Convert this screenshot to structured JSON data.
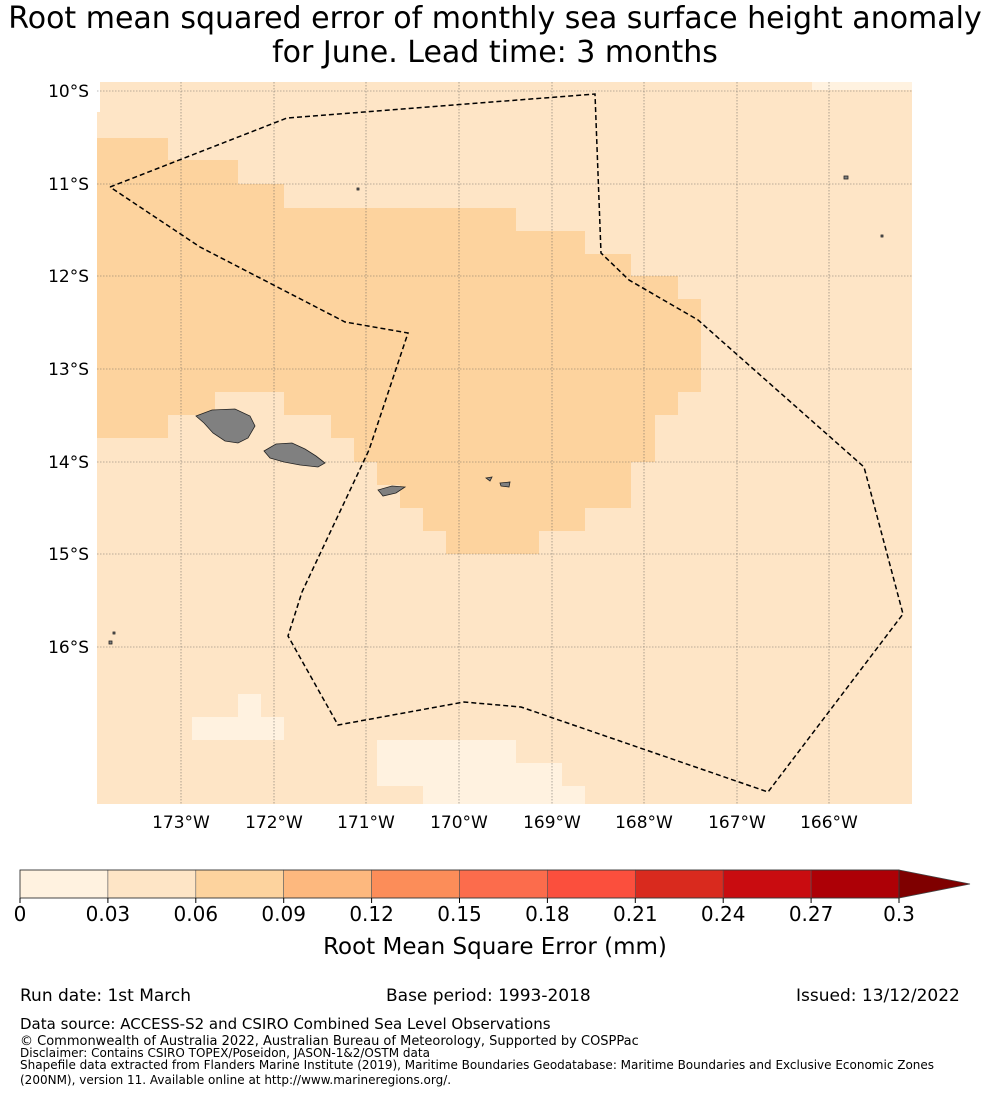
{
  "title_line1": "Root mean squared error of monthly sea surface height anomaly",
  "title_line2": "for June. Lead time: 3 months",
  "map": {
    "lat_labels": [
      "10°S",
      "11°S",
      "12°S",
      "13°S",
      "14°S",
      "15°S",
      "16°S"
    ],
    "lon_labels": [
      "173°W",
      "172°W",
      "171°W",
      "170°W",
      "169°W",
      "168°W",
      "167°W",
      "166°W"
    ],
    "boundary_line": "dashed",
    "land_color": "#808080"
  },
  "colorbar": {
    "label": "Root Mean Square Error (mm)",
    "ticks": [
      "0",
      "0.03",
      "0.06",
      "0.09",
      "0.12",
      "0.15",
      "0.18",
      "0.21",
      "0.24",
      "0.27",
      "0.3"
    ],
    "colors": [
      "#fff2e0",
      "#fee5c6",
      "#fdd39e",
      "#fdb87e",
      "#fc8d59",
      "#fc6c4c",
      "#fb4f3d",
      "#d92a1e",
      "#c90c10",
      "#ad0006"
    ],
    "extend_color": "#7f0000"
  },
  "footer": {
    "run_date": "Run date: 1st March",
    "base_period": "Base period: 1993-2018",
    "issued": "Issued: 13/12/2022",
    "data_source": "Data source: ACCESS-S2 and CSIRO Combined Sea Level Observations",
    "copyright": "© Commonwealth of Australia 2022, Australian Bureau of Meteorology, Supported by COSPPac",
    "disclaimer": "Disclaimer: Contains CSIRO TOPEX/Poseidon, JASON-1&2/OSTM data",
    "shapefile_1": "Shapefile data extracted from Flanders Marine Institute (2019), Maritime Boundaries Geodatabase: Maritime Boundaries and Exclusive Economic Zones",
    "shapefile_2": "(200NM), version 11. Available online at http://www.marineregions.org/."
  }
}
